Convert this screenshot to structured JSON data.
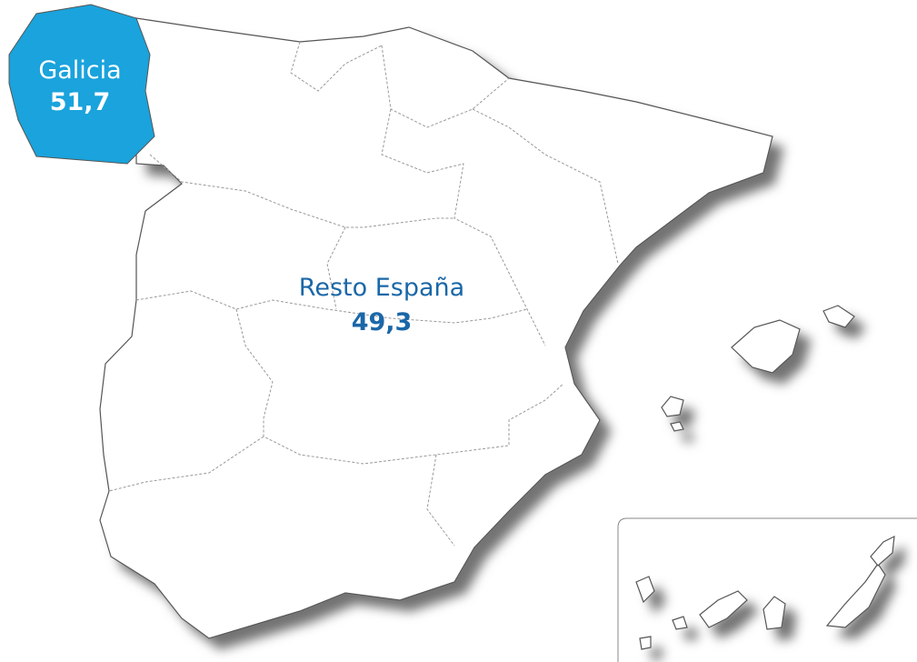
{
  "regions": [
    {
      "name": "Galicia",
      "value": "51,7"
    },
    {
      "name": "Resto España",
      "value": "49,3"
    }
  ]
}
